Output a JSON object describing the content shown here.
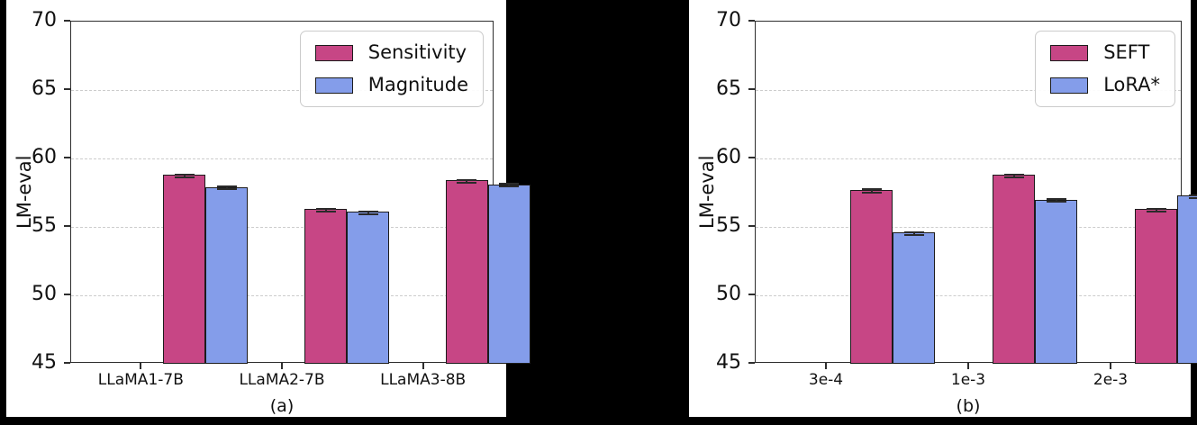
{
  "page": {
    "background_color": "#000000",
    "panel_color": "#ffffff"
  },
  "style": {
    "bar_edge_color": "#1c1c1c",
    "grid_color": "#cccccc",
    "spine_color": "#2e2e2e",
    "error_cap_color": "#2a2a2a"
  },
  "chart_data": [
    {
      "type": "bar",
      "caption": "(a)",
      "title": "",
      "xlabel": "",
      "ylabel": "LM-eval",
      "categories": [
        "LLaMA1-7B",
        "LLaMA2-7B",
        "LLaMA3-8B"
      ],
      "series": [
        {
          "name": "Sensitivity",
          "color": "#C74685",
          "values": [
            58.8,
            56.3,
            58.4
          ],
          "errors": [
            0.1,
            0.1,
            0.1
          ]
        },
        {
          "name": "Magnitude",
          "color": "#849DEA",
          "values": [
            57.9,
            56.1,
            58.1
          ],
          "errors": [
            0.1,
            0.1,
            0.1
          ]
        }
      ],
      "ylim": [
        45,
        70
      ],
      "yticks": [
        45,
        50,
        55,
        60,
        65,
        70
      ],
      "gridlines": [
        50,
        55,
        60,
        65
      ],
      "grid_style": "dashed-horizontal",
      "legend_position": "upper-right"
    },
    {
      "type": "bar",
      "caption": "(b)",
      "title": "",
      "xlabel": "",
      "ylabel": "LM-eval",
      "categories": [
        "3e-4",
        "1e-3",
        "2e-3"
      ],
      "series": [
        {
          "name": "SEFT",
          "color": "#C74685",
          "values": [
            57.7,
            58.8,
            56.3
          ],
          "errors": [
            0.1,
            0.1,
            0.1
          ]
        },
        {
          "name": "LoRA*",
          "color": "#849DEA",
          "values": [
            54.6,
            57.0,
            57.3
          ],
          "errors": [
            0.1,
            0.1,
            0.1
          ]
        }
      ],
      "ylim": [
        45,
        70
      ],
      "yticks": [
        45,
        50,
        55,
        60,
        65,
        70
      ],
      "gridlines": [
        50,
        55,
        60,
        65
      ],
      "grid_style": "dashed-horizontal",
      "legend_position": "upper-right"
    }
  ]
}
